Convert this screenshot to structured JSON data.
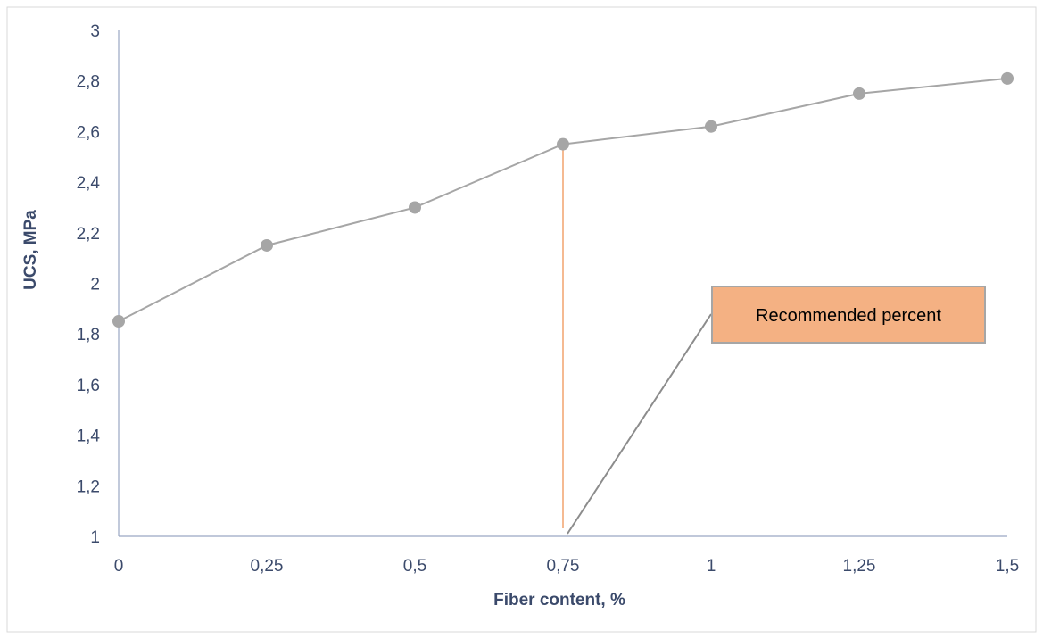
{
  "chart_data": {
    "type": "line",
    "x": [
      0,
      0.25,
      0.5,
      0.75,
      1,
      1.25,
      1.5
    ],
    "x_tick_labels": [
      "0",
      "0,25",
      "0,5",
      "0,75",
      "1",
      "1,25",
      "1,5"
    ],
    "series": [
      {
        "values": [
          1.85,
          2.15,
          2.3,
          2.55,
          2.62,
          2.75,
          2.81
        ],
        "color": "#a6a6a6"
      }
    ],
    "y_ticks": [
      1,
      1.2,
      1.4,
      1.6,
      1.8,
      2,
      2.2,
      2.4,
      2.6,
      2.8,
      3
    ],
    "y_tick_labels": [
      "1",
      "1,2",
      "1,4",
      "1,6",
      "1,8",
      "2",
      "2,2",
      "2,4",
      "2,6",
      "2,8",
      "3"
    ],
    "xlabel": "Fiber content, %",
    "ylabel": "UCS, MPa",
    "xlim": [
      0,
      1.5
    ],
    "ylim": [
      1,
      3
    ],
    "grid": false,
    "annotations": [
      {
        "text": "Recommended percent",
        "x": 0.75,
        "marker_color": "#f2a36e",
        "box_color": "#f4b183"
      }
    ],
    "axis_color": "#9aa7c3",
    "label_color": "#3b4a6b"
  }
}
